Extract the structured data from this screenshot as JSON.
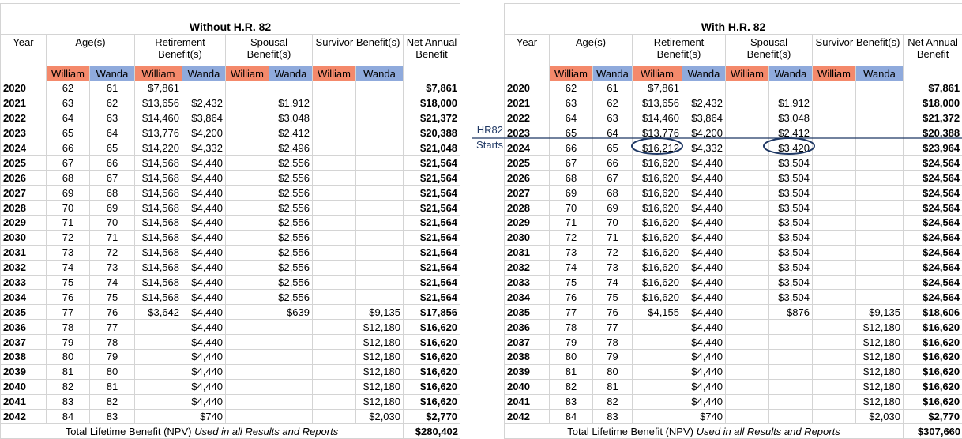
{
  "annotation": [
    "HR82",
    "Starts"
  ],
  "left": {
    "title": "Without H.R. 82",
    "header": {
      "year": "Year",
      "age": "Age(s)",
      "retirement": "Retirement Benefit(s)",
      "spousal": "Spousal Benefit(s)",
      "survivor": "Survivor Benefit(s)",
      "net": "Net Annual Benefit",
      "sub": [
        "William",
        "Wanda",
        "William",
        "Wanda",
        "William",
        "Wanda",
        "William",
        "Wanda"
      ]
    },
    "rows": [
      [
        "2020",
        "62",
        "61",
        "$7,861",
        null,
        null,
        null,
        null,
        null,
        "$7,861"
      ],
      [
        "2021",
        "63",
        "62",
        "$13,656",
        "$2,432",
        null,
        "$1,912",
        null,
        null,
        "$18,000"
      ],
      [
        "2022",
        "64",
        "63",
        "$14,460",
        "$3,864",
        null,
        "$3,048",
        null,
        null,
        "$21,372"
      ],
      [
        "2023",
        "65",
        "64",
        "$13,776",
        "$4,200",
        null,
        "$2,412",
        null,
        null,
        "$20,388"
      ],
      [
        "2024",
        "66",
        "65",
        "$14,220",
        "$4,332",
        null,
        "$2,496",
        null,
        null,
        "$21,048"
      ],
      [
        "2025",
        "67",
        "66",
        "$14,568",
        "$4,440",
        null,
        "$2,556",
        null,
        null,
        "$21,564"
      ],
      [
        "2026",
        "68",
        "67",
        "$14,568",
        "$4,440",
        null,
        "$2,556",
        null,
        null,
        "$21,564"
      ],
      [
        "2027",
        "69",
        "68",
        "$14,568",
        "$4,440",
        null,
        "$2,556",
        null,
        null,
        "$21,564"
      ],
      [
        "2028",
        "70",
        "69",
        "$14,568",
        "$4,440",
        null,
        "$2,556",
        null,
        null,
        "$21,564"
      ],
      [
        "2029",
        "71",
        "70",
        "$14,568",
        "$4,440",
        null,
        "$2,556",
        null,
        null,
        "$21,564"
      ],
      [
        "2030",
        "72",
        "71",
        "$14,568",
        "$4,440",
        null,
        "$2,556",
        null,
        null,
        "$21,564"
      ],
      [
        "2031",
        "73",
        "72",
        "$14,568",
        "$4,440",
        null,
        "$2,556",
        null,
        null,
        "$21,564"
      ],
      [
        "2032",
        "74",
        "73",
        "$14,568",
        "$4,440",
        null,
        "$2,556",
        null,
        null,
        "$21,564"
      ],
      [
        "2033",
        "75",
        "74",
        "$14,568",
        "$4,440",
        null,
        "$2,556",
        null,
        null,
        "$21,564"
      ],
      [
        "2034",
        "76",
        "75",
        "$14,568",
        "$4,440",
        null,
        "$2,556",
        null,
        null,
        "$21,564"
      ],
      [
        "2035",
        "77",
        "76",
        "$3,642",
        "$4,440",
        null,
        "$639",
        null,
        "$9,135",
        "$17,856"
      ],
      [
        "2036",
        "78",
        "77",
        null,
        "$4,440",
        null,
        null,
        null,
        "$12,180",
        "$16,620"
      ],
      [
        "2037",
        "79",
        "78",
        null,
        "$4,440",
        null,
        null,
        null,
        "$12,180",
        "$16,620"
      ],
      [
        "2038",
        "80",
        "79",
        null,
        "$4,440",
        null,
        null,
        null,
        "$12,180",
        "$16,620"
      ],
      [
        "2039",
        "81",
        "80",
        null,
        "$4,440",
        null,
        null,
        null,
        "$12,180",
        "$16,620"
      ],
      [
        "2040",
        "82",
        "81",
        null,
        "$4,440",
        null,
        null,
        null,
        "$12,180",
        "$16,620"
      ],
      [
        "2041",
        "83",
        "82",
        null,
        "$4,440",
        null,
        null,
        null,
        "$12,180",
        "$16,620"
      ],
      [
        "2042",
        "84",
        "83",
        null,
        "$740",
        null,
        null,
        null,
        "$2,030",
        "$2,770"
      ]
    ],
    "total": {
      "label": "Total Lifetime Benefit (NPV)",
      "note": "Used in all Results and Reports",
      "value": "$280,402"
    }
  },
  "right": {
    "title": "With H.R. 82",
    "header": {
      "year": "Year",
      "age": "Age(s)",
      "retirement": "Retirement Benefit(s)",
      "spousal": "Spousal Benefit(s)",
      "survivor": "Survivor Benefit(s)",
      "net": "Net Annual Benefit",
      "sub": [
        "William",
        "Wanda",
        "William",
        "Wanda",
        "William",
        "Wanda",
        "William",
        "Wanda"
      ]
    },
    "rows": [
      [
        "2020",
        "62",
        "61",
        "$7,861",
        null,
        null,
        null,
        null,
        null,
        "$7,861"
      ],
      [
        "2021",
        "63",
        "62",
        "$13,656",
        "$2,432",
        null,
        "$1,912",
        null,
        null,
        "$18,000"
      ],
      [
        "2022",
        "64",
        "63",
        "$14,460",
        "$3,864",
        null,
        "$3,048",
        null,
        null,
        "$21,372"
      ],
      [
        "2023",
        "65",
        "64",
        "$13,776",
        "$4,200",
        null,
        "$2,412",
        null,
        null,
        "$20,388"
      ],
      [
        "2024",
        "66",
        "65",
        "$16,212",
        "$4,332",
        null,
        "$3,420",
        null,
        null,
        "$23,964"
      ],
      [
        "2025",
        "67",
        "66",
        "$16,620",
        "$4,440",
        null,
        "$3,504",
        null,
        null,
        "$24,564"
      ],
      [
        "2026",
        "68",
        "67",
        "$16,620",
        "$4,440",
        null,
        "$3,504",
        null,
        null,
        "$24,564"
      ],
      [
        "2027",
        "69",
        "68",
        "$16,620",
        "$4,440",
        null,
        "$3,504",
        null,
        null,
        "$24,564"
      ],
      [
        "2028",
        "70",
        "69",
        "$16,620",
        "$4,440",
        null,
        "$3,504",
        null,
        null,
        "$24,564"
      ],
      [
        "2029",
        "71",
        "70",
        "$16,620",
        "$4,440",
        null,
        "$3,504",
        null,
        null,
        "$24,564"
      ],
      [
        "2030",
        "72",
        "71",
        "$16,620",
        "$4,440",
        null,
        "$3,504",
        null,
        null,
        "$24,564"
      ],
      [
        "2031",
        "73",
        "72",
        "$16,620",
        "$4,440",
        null,
        "$3,504",
        null,
        null,
        "$24,564"
      ],
      [
        "2032",
        "74",
        "73",
        "$16,620",
        "$4,440",
        null,
        "$3,504",
        null,
        null,
        "$24,564"
      ],
      [
        "2033",
        "75",
        "74",
        "$16,620",
        "$4,440",
        null,
        "$3,504",
        null,
        null,
        "$24,564"
      ],
      [
        "2034",
        "76",
        "75",
        "$16,620",
        "$4,440",
        null,
        "$3,504",
        null,
        null,
        "$24,564"
      ],
      [
        "2035",
        "77",
        "76",
        "$4,155",
        "$4,440",
        null,
        "$876",
        null,
        "$9,135",
        "$18,606"
      ],
      [
        "2036",
        "78",
        "77",
        null,
        "$4,440",
        null,
        null,
        null,
        "$12,180",
        "$16,620"
      ],
      [
        "2037",
        "79",
        "78",
        null,
        "$4,440",
        null,
        null,
        null,
        "$12,180",
        "$16,620"
      ],
      [
        "2038",
        "80",
        "79",
        null,
        "$4,440",
        null,
        null,
        null,
        "$12,180",
        "$16,620"
      ],
      [
        "2039",
        "81",
        "80",
        null,
        "$4,440",
        null,
        null,
        null,
        "$12,180",
        "$16,620"
      ],
      [
        "2040",
        "82",
        "81",
        null,
        "$4,440",
        null,
        null,
        null,
        "$12,180",
        "$16,620"
      ],
      [
        "2041",
        "83",
        "82",
        null,
        "$4,440",
        null,
        null,
        null,
        "$12,180",
        "$16,620"
      ],
      [
        "2042",
        "84",
        "83",
        null,
        "$740",
        null,
        null,
        null,
        "$2,030",
        "$2,770"
      ]
    ],
    "total": {
      "label": "Total Lifetime Benefit (NPV)",
      "note": "Used in all Results and Reports",
      "value": "$307,660"
    }
  }
}
